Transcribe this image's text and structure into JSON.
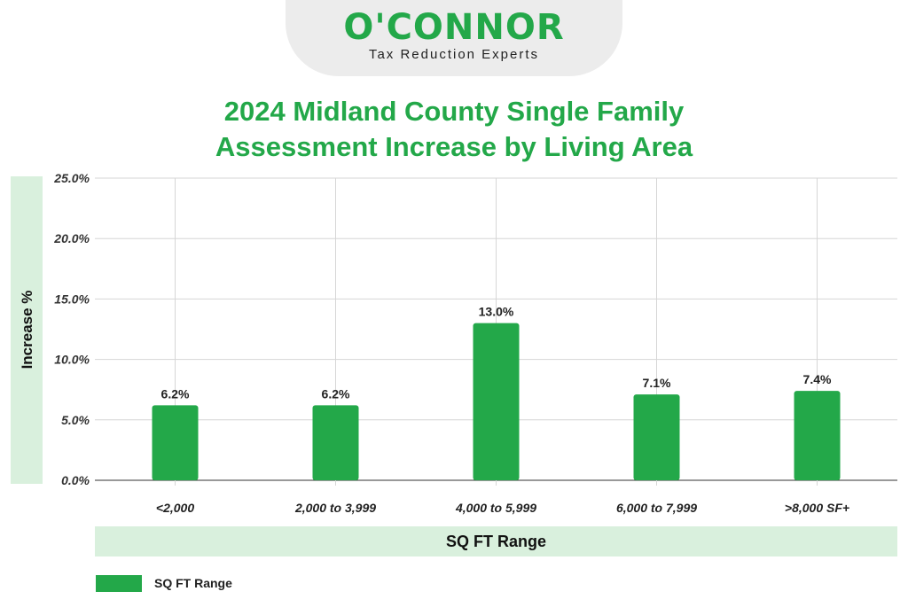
{
  "brand": {
    "name": "O'CONNOR",
    "tagline": "Tax Reduction Experts"
  },
  "chart_data": {
    "type": "bar",
    "title": [
      "2024 Midland County Single Family",
      "Assessment Increase by Living Area"
    ],
    "xlabel": "SQ FT Range",
    "ylabel": "Increase %",
    "categories": [
      "<2,000",
      "2,000 to 3,999",
      "4,000 to 5,999",
      "6,000 to 7,999",
      ">8,000 SF+"
    ],
    "series": [
      {
        "name": "SQ FT Range",
        "values": [
          6.2,
          6.2,
          13.0,
          7.1,
          7.4
        ],
        "color": "#23a849"
      }
    ],
    "data_labels": [
      "6.2%",
      "6.2%",
      "13.0%",
      "7.1%",
      "7.4%"
    ],
    "ylim": [
      0,
      25
    ],
    "yticks": [
      0,
      5,
      10,
      15,
      20,
      25
    ],
    "ytick_labels": [
      "0.0%",
      "5.0%",
      "10.0%",
      "15.0%",
      "20.0%",
      "25.0%"
    ],
    "grid": true,
    "legend_position": "bottom-left"
  },
  "colors": {
    "accent": "#23a849",
    "band": "#d9f0dd",
    "grid": "#d6d6d6"
  }
}
